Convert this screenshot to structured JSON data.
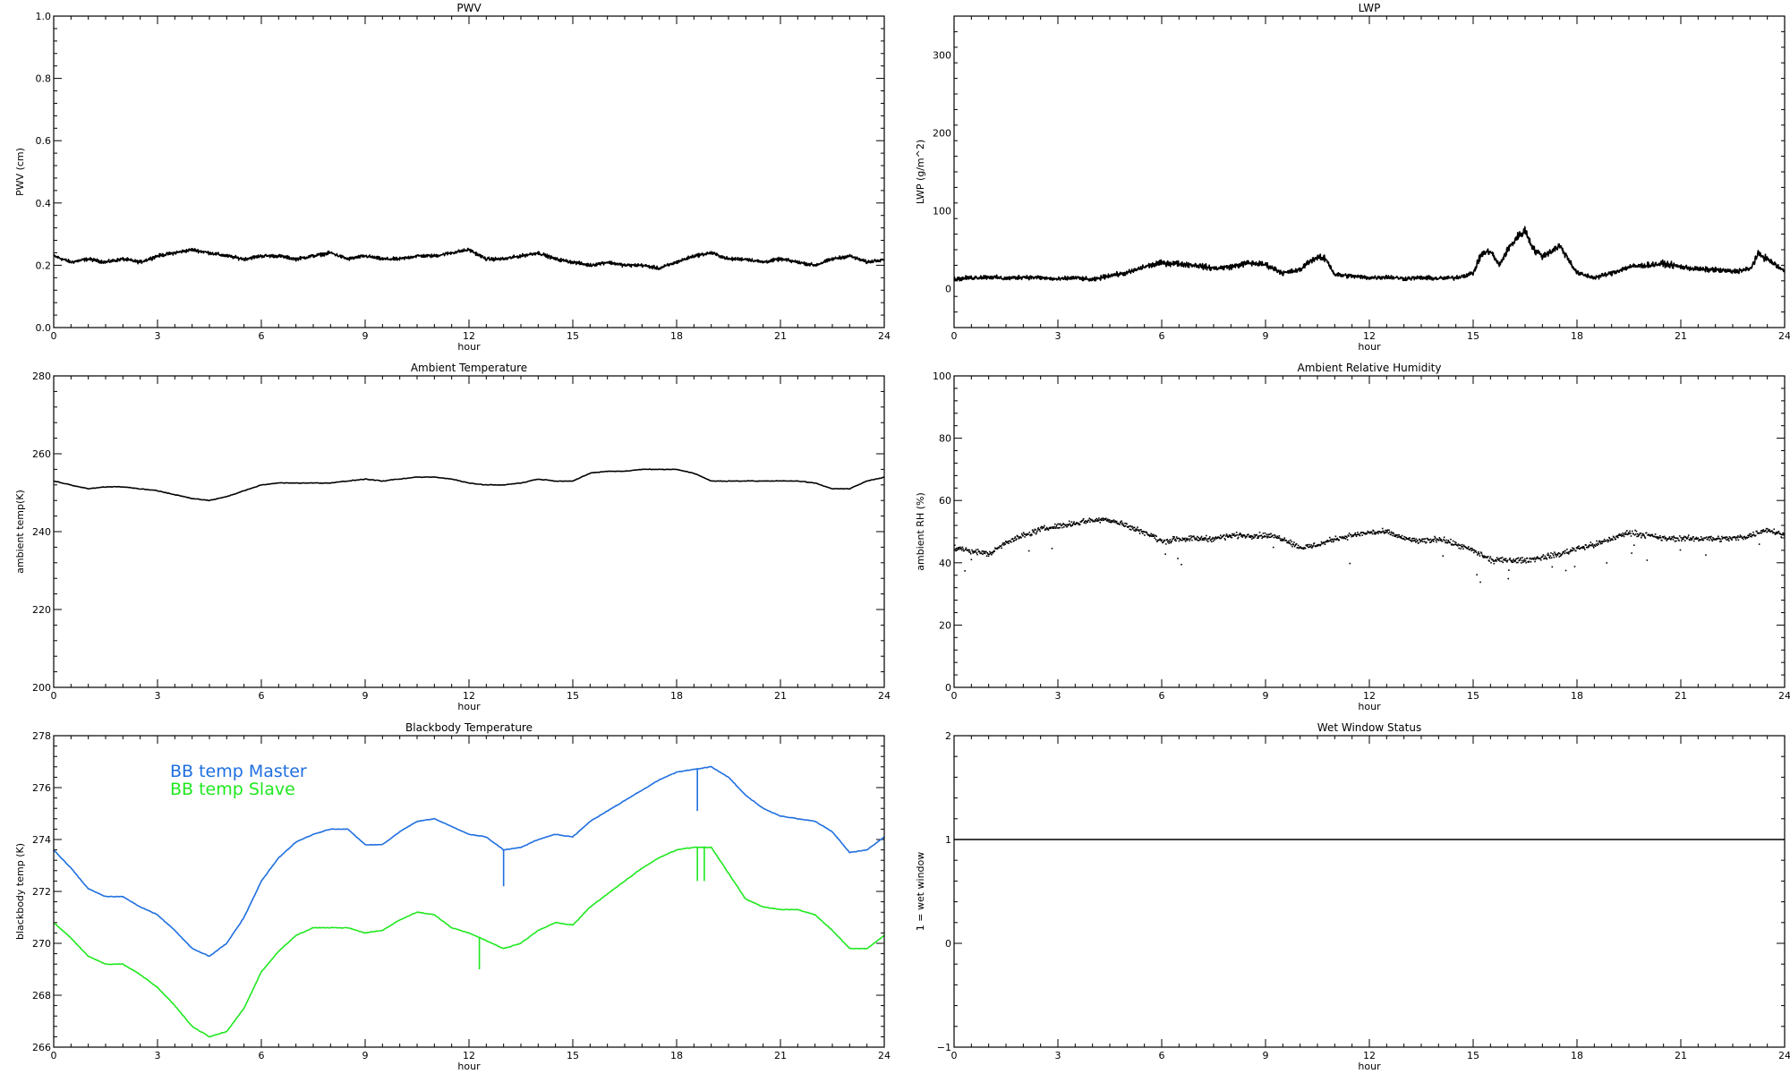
{
  "chart_data": [
    {
      "id": "pwv",
      "type": "line",
      "title": "PWV",
      "xlabel": "hour",
      "ylabel": "PWV (cm)",
      "xlim": [
        0,
        24
      ],
      "ylim": [
        0.0,
        1.0
      ],
      "xticks": [
        0,
        3,
        6,
        9,
        12,
        15,
        18,
        21,
        24
      ],
      "yticks": [
        0.0,
        0.2,
        0.4,
        0.6,
        0.8,
        1.0
      ],
      "ytick_labels": [
        "0.0",
        "0.2",
        "0.4",
        "0.6",
        "0.8",
        "1.0"
      ],
      "noise": 0.008,
      "series": [
        {
          "color": "#000000",
          "x": [
            0,
            0.5,
            1,
            1.5,
            2,
            2.5,
            3,
            3.5,
            4,
            4.5,
            5,
            5.5,
            6,
            6.5,
            7,
            7.5,
            8,
            8.5,
            9,
            9.5,
            10,
            10.5,
            11,
            11.5,
            12,
            12.5,
            13,
            13.5,
            14,
            14.5,
            15,
            15.5,
            16,
            16.5,
            17,
            17.5,
            18,
            18.5,
            19,
            19.5,
            20,
            20.5,
            21,
            21.5,
            22,
            22.5,
            23,
            23.5,
            24
          ],
          "y": [
            0.23,
            0.21,
            0.22,
            0.21,
            0.22,
            0.21,
            0.23,
            0.24,
            0.25,
            0.24,
            0.23,
            0.22,
            0.23,
            0.23,
            0.22,
            0.23,
            0.24,
            0.22,
            0.23,
            0.22,
            0.22,
            0.23,
            0.23,
            0.24,
            0.25,
            0.22,
            0.22,
            0.23,
            0.24,
            0.22,
            0.21,
            0.2,
            0.21,
            0.2,
            0.2,
            0.19,
            0.21,
            0.23,
            0.24,
            0.22,
            0.22,
            0.21,
            0.22,
            0.21,
            0.2,
            0.22,
            0.23,
            0.21,
            0.22
          ]
        }
      ]
    },
    {
      "id": "lwp",
      "type": "line",
      "title": "LWP",
      "xlabel": "hour",
      "ylabel": "LWP (g/m^2)",
      "xlim": [
        0,
        24
      ],
      "ylim": [
        -50,
        350
      ],
      "xticks": [
        0,
        3,
        6,
        9,
        12,
        15,
        18,
        21,
        24
      ],
      "yticks": [
        0,
        100,
        200,
        300
      ],
      "ytick_labels": [
        "0",
        "100",
        "200",
        "300"
      ],
      "noise": 3,
      "series": [
        {
          "color": "#000000",
          "x": [
            0,
            0.5,
            1,
            1.5,
            2,
            2.5,
            3,
            3.5,
            4,
            4.5,
            5,
            5.5,
            6,
            6.5,
            7,
            7.5,
            8,
            8.5,
            9,
            9.5,
            10,
            10.25,
            10.5,
            10.75,
            11,
            11.5,
            12,
            12.5,
            13,
            13.5,
            14,
            14.5,
            15,
            15.25,
            15.5,
            15.75,
            16,
            16.25,
            16.5,
            16.75,
            17,
            17.25,
            17.5,
            17.75,
            18,
            18.5,
            19,
            19.5,
            20,
            20.5,
            21,
            21.5,
            22,
            22.5,
            23,
            23.25,
            23.5,
            24
          ],
          "y": [
            12,
            14,
            15,
            13,
            15,
            14,
            12,
            14,
            11,
            17,
            20,
            28,
            33,
            32,
            30,
            26,
            28,
            33,
            31,
            20,
            24,
            35,
            40,
            38,
            18,
            16,
            14,
            15,
            13,
            14,
            13,
            14,
            20,
            45,
            48,
            30,
            50,
            65,
            75,
            50,
            42,
            48,
            55,
            38,
            20,
            14,
            20,
            28,
            30,
            32,
            28,
            25,
            24,
            22,
            25,
            45,
            38,
            22
          ]
        }
      ]
    },
    {
      "id": "ambient-temperature",
      "type": "line",
      "title": "Ambient Temperature",
      "xlabel": "hour",
      "ylabel": "ambient temp(K)",
      "xlim": [
        0,
        24
      ],
      "ylim": [
        200,
        280
      ],
      "xticks": [
        0,
        3,
        6,
        9,
        12,
        15,
        18,
        21,
        24
      ],
      "yticks": [
        200,
        220,
        240,
        260,
        280
      ],
      "ytick_labels": [
        "200",
        "220",
        "240",
        "260",
        "280"
      ],
      "series": [
        {
          "color": "#000000",
          "x": [
            0,
            0.5,
            1,
            1.5,
            2,
            2.5,
            3,
            3.5,
            4,
            4.5,
            5,
            5.5,
            6,
            6.5,
            7,
            7.5,
            8,
            8.5,
            9,
            9.5,
            10,
            10.5,
            11,
            11.5,
            12,
            12.5,
            13,
            13.5,
            14,
            14.5,
            15,
            15.5,
            16,
            16.5,
            17,
            17.5,
            18,
            18.5,
            19,
            19.5,
            20,
            20.5,
            21,
            21.5,
            22,
            22.5,
            23,
            23.5,
            24
          ],
          "y": [
            253,
            252,
            251,
            251.5,
            251.5,
            251,
            250.5,
            249.5,
            248.5,
            248,
            249,
            250.5,
            252,
            252.5,
            252.5,
            252.5,
            252.5,
            253,
            253.5,
            253,
            253.5,
            254,
            254,
            253.5,
            252.5,
            252,
            252,
            252.5,
            253.5,
            253,
            253,
            255,
            255.5,
            255.5,
            256,
            256,
            256,
            255,
            253,
            253,
            253,
            253,
            253,
            253,
            252.5,
            251,
            251,
            253,
            254
          ]
        }
      ]
    },
    {
      "id": "ambient-relative-humidity",
      "type": "scatter",
      "title": "Ambient Relative Humidity",
      "xlabel": "hour",
      "ylabel": "ambient RH (%)",
      "xlim": [
        0,
        24
      ],
      "ylim": [
        0,
        100
      ],
      "xticks": [
        0,
        3,
        6,
        9,
        12,
        15,
        18,
        21,
        24
      ],
      "yticks": [
        0,
        20,
        40,
        60,
        80,
        100
      ],
      "ytick_labels": [
        "0",
        "20",
        "40",
        "60",
        "80",
        "100"
      ],
      "noise": 1.3,
      "series": [
        {
          "color": "#000000",
          "x": [
            0,
            0.5,
            1,
            1.5,
            2,
            2.5,
            3,
            3.5,
            4,
            4.5,
            5,
            5.5,
            6,
            6.5,
            7,
            7.5,
            8,
            8.5,
            9,
            9.5,
            10,
            10.5,
            11,
            11.5,
            12,
            12.5,
            13,
            13.5,
            14,
            14.5,
            15,
            15.5,
            16,
            16.5,
            17,
            17.5,
            18,
            18.5,
            19,
            19.5,
            20,
            20.5,
            21,
            21.5,
            22,
            22.5,
            23,
            23.5,
            24
          ],
          "y": [
            45,
            44,
            43,
            47,
            49,
            51,
            52,
            53,
            54,
            54,
            52,
            50,
            47,
            48,
            48,
            48,
            49,
            49,
            49,
            48,
            45,
            46,
            48,
            49,
            50,
            50,
            48,
            47,
            48,
            46,
            44,
            41,
            41,
            41,
            42,
            43,
            45,
            46,
            48,
            50,
            49,
            48,
            48,
            48,
            48,
            48,
            49,
            51,
            49
          ]
        }
      ]
    },
    {
      "id": "blackbody-temperature",
      "type": "line",
      "title": "Blackbody Temperature",
      "xlabel": "hour",
      "ylabel": "blackbody temp (K)",
      "xlim": [
        0,
        24
      ],
      "ylim": [
        266,
        278
      ],
      "xticks": [
        0,
        3,
        6,
        9,
        12,
        15,
        18,
        21,
        24
      ],
      "yticks": [
        266,
        268,
        270,
        272,
        274,
        276,
        278
      ],
      "ytick_labels": [
        "266",
        "268",
        "270",
        "272",
        "274",
        "276",
        "278"
      ],
      "legend_position": "top-left",
      "series": [
        {
          "name": "BB temp Master",
          "color": "#1f6fe0",
          "x": [
            0,
            0.5,
            1,
            1.5,
            2,
            2.5,
            3,
            3.5,
            4,
            4.5,
            5,
            5.5,
            6,
            6.5,
            7,
            7.5,
            8,
            8.5,
            9,
            9.5,
            10,
            10.5,
            11,
            11.5,
            12,
            12.5,
            13,
            13.5,
            14,
            14.5,
            15,
            15.5,
            16,
            16.5,
            17,
            17.5,
            18,
            18.5,
            19,
            19.5,
            20,
            20.5,
            21,
            21.5,
            22,
            22.5,
            23,
            23.5,
            24
          ],
          "y": [
            273.6,
            272.9,
            272.1,
            271.8,
            271.8,
            271.4,
            271.1,
            270.5,
            269.8,
            269.5,
            270.0,
            271.0,
            272.4,
            273.3,
            273.9,
            274.2,
            274.4,
            274.4,
            273.8,
            273.8,
            274.3,
            274.7,
            274.8,
            274.5,
            274.2,
            274.1,
            273.6,
            273.7,
            274.0,
            274.2,
            274.1,
            274.7,
            275.1,
            275.5,
            275.9,
            276.3,
            276.6,
            276.7,
            276.8,
            276.4,
            275.7,
            275.2,
            274.9,
            274.8,
            274.7,
            274.3,
            273.5,
            273.6,
            274.1
          ],
          "spikes": [
            [
              13.0,
              272.2
            ],
            [
              18.6,
              275.1
            ]
          ]
        },
        {
          "name": "BB temp Slave",
          "color": "#1fe81f",
          "x": [
            0,
            0.5,
            1,
            1.5,
            2,
            2.5,
            3,
            3.5,
            4,
            4.5,
            5,
            5.5,
            6,
            6.5,
            7,
            7.5,
            8,
            8.5,
            9,
            9.5,
            10,
            10.5,
            11,
            11.5,
            12,
            12.5,
            13,
            13.5,
            14,
            14.5,
            15,
            15.5,
            16,
            16.5,
            17,
            17.5,
            18,
            18.5,
            19,
            19.5,
            20,
            20.5,
            21,
            21.5,
            22,
            22.5,
            23,
            23.5,
            24
          ],
          "y": [
            270.8,
            270.2,
            269.5,
            269.2,
            269.2,
            268.8,
            268.3,
            267.6,
            266.8,
            266.4,
            266.6,
            267.5,
            268.9,
            269.7,
            270.3,
            270.6,
            270.6,
            270.6,
            270.4,
            270.5,
            270.9,
            271.2,
            271.1,
            270.6,
            270.4,
            270.1,
            269.8,
            270.0,
            270.5,
            270.8,
            270.7,
            271.4,
            271.9,
            272.4,
            272.9,
            273.3,
            273.6,
            273.7,
            273.7,
            272.7,
            271.7,
            271.4,
            271.3,
            271.3,
            271.1,
            270.5,
            269.8,
            269.8,
            270.3
          ],
          "spikes": [
            [
              12.3,
              269.0
            ],
            [
              18.6,
              272.4
            ],
            [
              18.8,
              272.4
            ]
          ]
        }
      ]
    },
    {
      "id": "wet-window-status",
      "type": "line",
      "title": "Wet Window Status",
      "xlabel": "hour",
      "ylabel": "1 = wet window",
      "xlim": [
        0,
        24
      ],
      "ylim": [
        -1,
        2
      ],
      "xticks": [
        0,
        3,
        6,
        9,
        12,
        15,
        18,
        21,
        24
      ],
      "yticks": [
        -1,
        0,
        1,
        2
      ],
      "ytick_labels": [
        "−1",
        "0",
        "1",
        "2"
      ],
      "series": [
        {
          "color": "#000000",
          "x": [
            0,
            24
          ],
          "y": [
            1,
            1
          ]
        }
      ]
    }
  ]
}
